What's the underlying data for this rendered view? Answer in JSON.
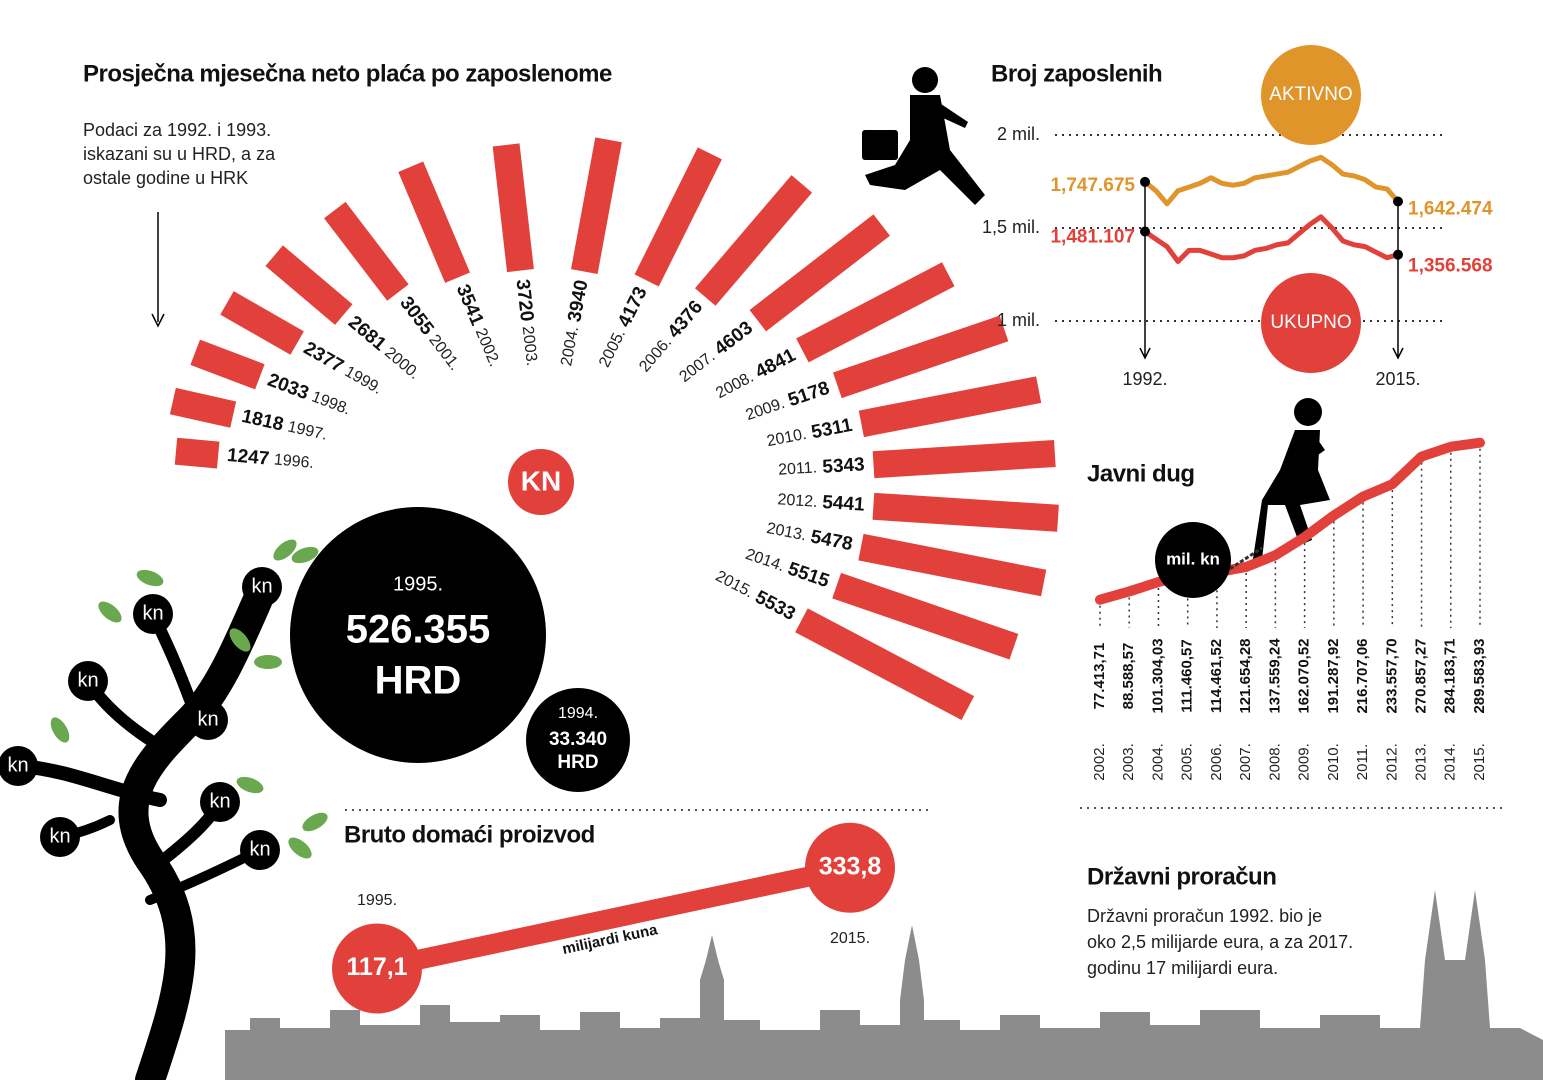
{
  "chart_data": [
    {
      "type": "radial_bar",
      "title": "Prosječna mjesečna neto plaća po zaposlenome",
      "note": [
        "Podaci za 1992. i 1993.",
        "iskazani su u HRD, a za",
        "ostale godine u HRK"
      ],
      "unit": "KN",
      "categories": [
        "1996.",
        "1997.",
        "1998.",
        "1999.",
        "2000.",
        "2001.",
        "2002.",
        "2003.",
        "2004.",
        "2005.",
        "2006.",
        "2007.",
        "2008.",
        "2009.",
        "2010.",
        "2011.",
        "2012.",
        "2013.",
        "2014.",
        "2015."
      ],
      "values": [
        1247,
        1818,
        2033,
        2377,
        2681,
        3055,
        3541,
        3720,
        3940,
        4173,
        4376,
        4603,
        4841,
        5178,
        5311,
        5343,
        5441,
        5478,
        5515,
        5533
      ],
      "color": "#e2403a",
      "bubbles": [
        {
          "year": "1995.",
          "value": 526355,
          "value_label": "526.355",
          "unit": "HRD"
        },
        {
          "year": "1994.",
          "value": 33340,
          "value_label": "33.340",
          "unit": "HRD"
        }
      ],
      "tree_label": "kn"
    },
    {
      "type": "line",
      "title": "Broj zaposlenih",
      "x": [
        1992,
        1993,
        1994,
        1995,
        1996,
        1997,
        1998,
        1999,
        2000,
        2001,
        2002,
        2003,
        2004,
        2005,
        2006,
        2007,
        2008,
        2009,
        2010,
        2011,
        2012,
        2013,
        2014,
        2015
      ],
      "xlim": [
        1992,
        2015
      ],
      "xticks": [
        {
          "value": 1992,
          "label": "1992."
        },
        {
          "value": 2015,
          "label": "2015."
        }
      ],
      "ylim": [
        1000000,
        2000000
      ],
      "yticks": [
        {
          "value": 1000000,
          "label": "1 mil."
        },
        {
          "value": 1500000,
          "label": "1,5 mil."
        },
        {
          "value": 2000000,
          "label": "2 mil."
        }
      ],
      "grid": true,
      "series": [
        {
          "name": "AKTIVNO",
          "color": "#e0952a",
          "values": [
            1747675,
            1700000,
            1630000,
            1700000,
            1720000,
            1740000,
            1770000,
            1740000,
            1730000,
            1740000,
            1770000,
            1780000,
            1790000,
            1800000,
            1830000,
            1860000,
            1880000,
            1840000,
            1790000,
            1780000,
            1760000,
            1720000,
            1710000,
            1642474
          ],
          "value_labels": [
            "1,747.675",
            null,
            null,
            null,
            null,
            null,
            null,
            null,
            null,
            null,
            null,
            null,
            null,
            null,
            null,
            null,
            null,
            null,
            null,
            null,
            null,
            null,
            null,
            "1,642.474"
          ]
        },
        {
          "name": "UKUPNO",
          "color": "#e2403a",
          "values": [
            1481107,
            1440000,
            1400000,
            1320000,
            1380000,
            1380000,
            1360000,
            1340000,
            1340000,
            1350000,
            1380000,
            1390000,
            1410000,
            1420000,
            1470000,
            1520000,
            1560000,
            1500000,
            1430000,
            1410000,
            1400000,
            1370000,
            1340000,
            1356568
          ],
          "value_labels": [
            "1,481.107",
            null,
            null,
            null,
            null,
            null,
            null,
            null,
            null,
            null,
            null,
            null,
            null,
            null,
            null,
            null,
            null,
            null,
            null,
            null,
            null,
            null,
            null,
            "1,356.568"
          ]
        }
      ]
    },
    {
      "type": "line",
      "title": "Javni dug",
      "unit": "mil. kn",
      "categories": [
        "2002.",
        "2003.",
        "2004.",
        "2005.",
        "2006.",
        "2007.",
        "2008.",
        "2009.",
        "2010.",
        "2011.",
        "2012.",
        "2013.",
        "2014.",
        "2015."
      ],
      "values": [
        77413.71,
        88588.57,
        101304.03,
        111460.57,
        114461.52,
        121654.28,
        137559.24,
        162070.52,
        191287.92,
        216707.06,
        233557.7,
        270857.27,
        284183.71,
        289583.93
      ],
      "value_labels": [
        "77.413,71",
        "88.588,57",
        "101.304,03",
        "111.460,57",
        "114.461,52",
        "121.654,28",
        "137.559,24",
        "162.070,52",
        "191.287,92",
        "216.707,06",
        "233.557,70",
        "270.857,27",
        "284.183,71",
        "289.583,93"
      ],
      "color": "#e2403a",
      "ylim": [
        0,
        300000
      ]
    },
    {
      "type": "dumbbell",
      "title": "Bruto domaći proizvod",
      "unit": "milijardi kuna",
      "categories": [
        "1995.",
        "2015."
      ],
      "values": [
        117.1,
        333.8
      ],
      "value_labels": [
        "117,1",
        "333,8"
      ],
      "color": "#e2403a",
      "ylim": [
        0,
        400
      ]
    }
  ],
  "budget": {
    "title": "Državni proračun",
    "text": [
      "Državni proračun 1992. bio je",
      "oko 2,5 milijarde eura, a za 2017.",
      "godinu 17 milijardi eura."
    ]
  }
}
